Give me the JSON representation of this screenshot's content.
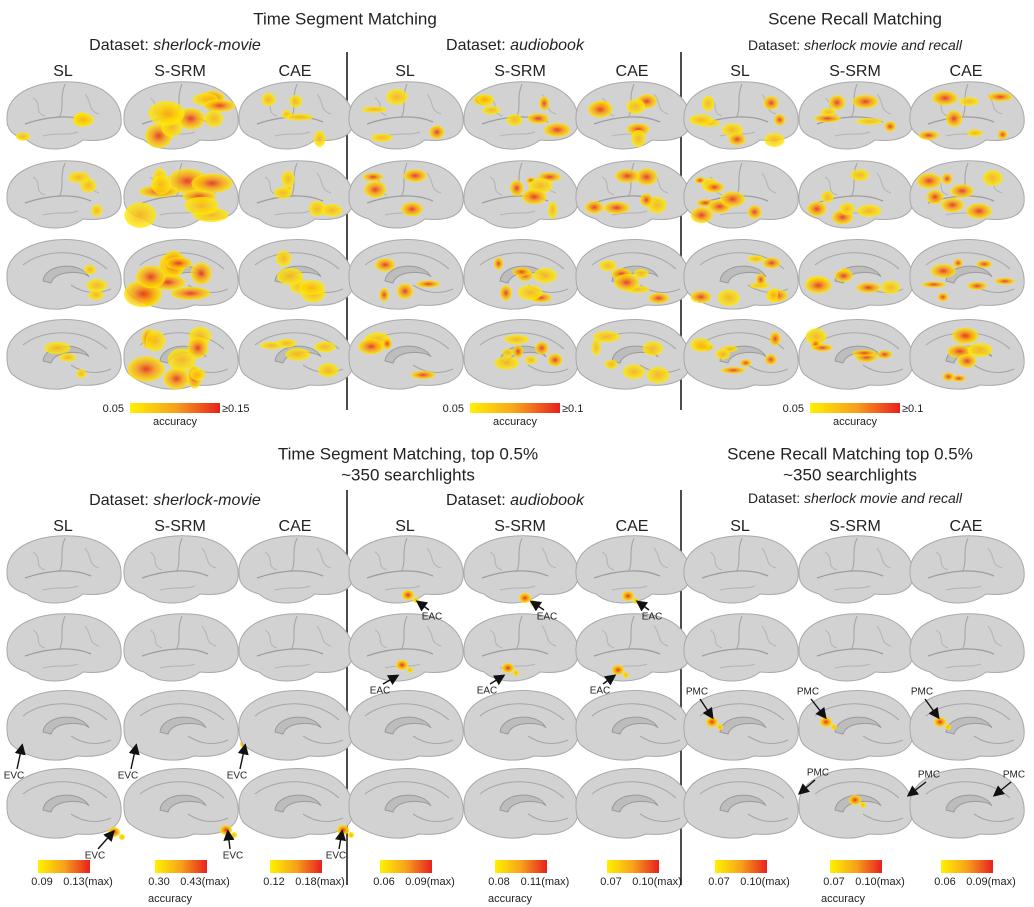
{
  "top": {
    "titles": [
      "Time Segment Matching",
      "Scene Recall Matching"
    ],
    "panels": [
      {
        "dataset_label": "Dataset:",
        "dataset": "sherlock-movie",
        "methods": [
          "SL",
          "S-SRM",
          "CAE"
        ],
        "colorbar": {
          "min": "0.05",
          "max": "≥0.15",
          "label": "accuracy"
        }
      },
      {
        "dataset_label": "Dataset:",
        "dataset": "audiobook",
        "methods": [
          "SL",
          "S-SRM",
          "CAE"
        ],
        "colorbar": {
          "min": "0.05",
          "max": "≥0.1",
          "label": "accuracy"
        }
      },
      {
        "dataset_label": "Dataset:",
        "dataset": "sherlock movie and recall",
        "methods": [
          "SL",
          "S-SRM",
          "CAE"
        ],
        "colorbar": {
          "min": "0.05",
          "max": "≥0.1",
          "label": "accuracy"
        }
      }
    ]
  },
  "bottom": {
    "titles": [
      [
        "Time Segment Matching, top 0.5%",
        "~350 searchlights"
      ],
      [
        "Scene Recall Matching top 0.5%",
        "~350 searchlights"
      ]
    ],
    "panels": [
      {
        "dataset_label": "Dataset:",
        "dataset": "sherlock-movie",
        "methods": [
          "SL",
          "S-SRM",
          "CAE"
        ],
        "colorbars": [
          {
            "min": "0.09",
            "max": "0.13(max)"
          },
          {
            "min": "0.30",
            "max": "0.43(max)"
          },
          {
            "min": "0.12",
            "max": "0.18(max)"
          }
        ],
        "colorbar_label": "accuracy",
        "annotations": [
          "EVC",
          "EVC",
          "EVC",
          "EVC",
          "EVC",
          "EVC"
        ]
      },
      {
        "dataset_label": "Dataset:",
        "dataset": "audiobook",
        "methods": [
          "SL",
          "S-SRM",
          "CAE"
        ],
        "colorbars": [
          {
            "min": "0.06",
            "max": "0.09(max)"
          },
          {
            "min": "0.08",
            "max": "0.11(max)"
          },
          {
            "min": "0.07",
            "max": "0.10(max)"
          }
        ],
        "colorbar_label": "accuracy",
        "annotations": [
          "EAC",
          "EAC",
          "EAC",
          "EAC",
          "EAC",
          "EAC"
        ]
      },
      {
        "dataset_label": "Dataset:",
        "dataset": "sherlock movie and recall",
        "methods": [
          "SL",
          "S-SRM",
          "CAE"
        ],
        "colorbars": [
          {
            "min": "0.07",
            "max": "0.10(max)"
          },
          {
            "min": "0.07",
            "max": "0.10(max)"
          },
          {
            "min": "0.06",
            "max": "0.09(max)"
          }
        ],
        "colorbar_label": "accuracy",
        "annotations": [
          "PMC",
          "PMC",
          "PMC",
          "PMC",
          "PMC",
          "PMC"
        ]
      }
    ]
  }
}
